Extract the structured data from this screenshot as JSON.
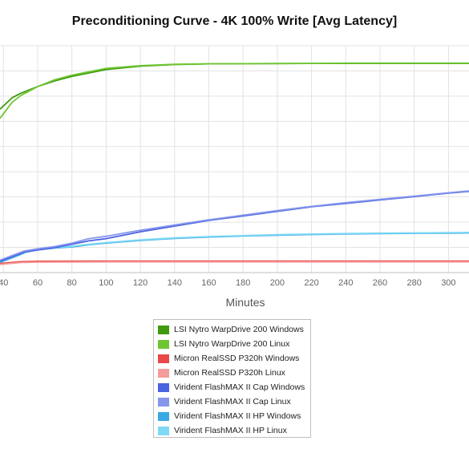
{
  "chart_data": {
    "type": "line",
    "title": "Preconditioning Curve - 4K 100% Write [Avg Latency]",
    "xlabel": "Minutes",
    "ylabel": "",
    "x_ticks": [
      40,
      60,
      80,
      100,
      120,
      140,
      160,
      180,
      200,
      220,
      240,
      260,
      280,
      300
    ],
    "xlim": [
      38,
      312
    ],
    "ylim": [
      0,
      100
    ],
    "grid": true,
    "legend_position": "bottom",
    "series": [
      {
        "name": "LSI Nytro WarpDrive 200 Windows",
        "color": "#3f9a0d",
        "x": [
          38,
          45,
          50,
          60,
          70,
          80,
          90,
          100,
          120,
          140,
          160,
          180,
          200,
          220,
          240,
          260,
          280,
          300,
          312
        ],
        "y": [
          72,
          77,
          79,
          82,
          84.5,
          86.5,
          88,
          89.5,
          91,
          91.7,
          92,
          92.1,
          92.1,
          92.2,
          92.2,
          92.2,
          92.2,
          92.2,
          92.2
        ]
      },
      {
        "name": "LSI Nytro WarpDrive 200 Linux",
        "color": "#6fc633",
        "x": [
          38,
          45,
          50,
          60,
          70,
          80,
          90,
          100,
          120,
          140,
          160,
          180,
          200,
          220,
          240,
          260,
          280,
          300,
          312
        ],
        "y": [
          68,
          75,
          78,
          82,
          85,
          87,
          88.5,
          90,
          91.2,
          91.8,
          92,
          92.1,
          92.2,
          92.2,
          92.3,
          92.3,
          92.3,
          92.3,
          92.3
        ]
      },
      {
        "name": "Micron RealSSD P320h Windows",
        "color": "#e84848",
        "x": [
          38,
          50,
          60,
          100,
          150,
          200,
          250,
          300,
          312
        ],
        "y": [
          4,
          4.8,
          5,
          5.1,
          5.1,
          5.1,
          5.1,
          5.1,
          5.1
        ]
      },
      {
        "name": "Micron RealSSD P320h Linux",
        "color": "#f59c9c",
        "x": [
          38,
          50,
          60,
          100,
          150,
          200,
          250,
          300,
          312
        ],
        "y": [
          3.6,
          4.4,
          4.6,
          4.7,
          4.7,
          4.7,
          4.7,
          4.7,
          4.7
        ]
      },
      {
        "name": "Virident FlashMAX II Cap Windows",
        "color": "#4a63e0",
        "x": [
          38,
          45,
          52,
          60,
          70,
          80,
          90,
          100,
          120,
          140,
          160,
          180,
          200,
          220,
          240,
          260,
          280,
          300,
          312
        ],
        "y": [
          5,
          7,
          9,
          10,
          11,
          12.5,
          14,
          15,
          18,
          20.5,
          23,
          25,
          27,
          29,
          30.5,
          32,
          33.5,
          35,
          35.8
        ]
      },
      {
        "name": "Virident FlashMAX II Cap Linux",
        "color": "#8596ec",
        "x": [
          38,
          45,
          52,
          60,
          70,
          80,
          90,
          100,
          120,
          140,
          160,
          180,
          200,
          220,
          240,
          260,
          280,
          300,
          312
        ],
        "y": [
          5.5,
          7.5,
          9.5,
          10.5,
          11.5,
          13,
          15,
          16,
          18.7,
          21,
          23.3,
          25.3,
          27.3,
          29.2,
          30.8,
          32.3,
          33.7,
          35.2,
          36
        ]
      },
      {
        "name": "Virident FlashMAX II HP Windows",
        "color": "#3aa9e6",
        "x": [
          38,
          45,
          50,
          53,
          60,
          70,
          80,
          90,
          100,
          120,
          140,
          160,
          180,
          200,
          220,
          240,
          260,
          280,
          300,
          312
        ],
        "y": [
          4.5,
          6.5,
          8,
          9,
          10,
          10.8,
          11.3,
          12.3,
          13,
          14.2,
          15.1,
          15.7,
          16.1,
          16.5,
          16.8,
          17,
          17.2,
          17.3,
          17.4,
          17.5
        ]
      },
      {
        "name": "Virident FlashMAX II HP Linux",
        "color": "#7dd9f5",
        "x": [
          38,
          45,
          50,
          53,
          60,
          70,
          80,
          90,
          100,
          120,
          140,
          160,
          180,
          200,
          220,
          240,
          260,
          280,
          300,
          312
        ],
        "y": [
          5,
          7,
          8.5,
          9.5,
          10.3,
          11,
          11.6,
          12.5,
          13.2,
          14.4,
          15.3,
          15.9,
          16.3,
          16.7,
          17,
          17.2,
          17.4,
          17.5,
          17.6,
          17.7
        ]
      }
    ]
  }
}
